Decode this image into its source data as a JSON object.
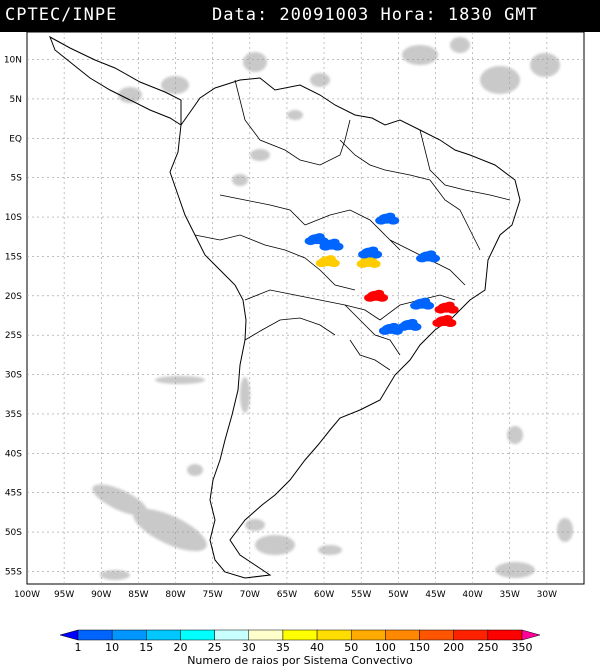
{
  "header": {
    "source": "CPTEC/INPE",
    "datetime": "Data: 20091003 Hora: 1830 GMT"
  },
  "map": {
    "lat_labels": [
      "10N",
      "5N",
      "EQ",
      "5S",
      "10S",
      "15S",
      "20S",
      "25S",
      "30S",
      "35S",
      "40S",
      "45S",
      "50S",
      "55S"
    ],
    "lon_labels": [
      "100W",
      "95W",
      "90W",
      "85W",
      "80W",
      "75W",
      "70W",
      "65W",
      "60W",
      "55W",
      "50W",
      "45W",
      "40W",
      "35W",
      "30W"
    ]
  },
  "colorbar": {
    "labels": [
      "1",
      "10",
      "15",
      "20",
      "25",
      "30",
      "35",
      "40",
      "50",
      "100",
      "150",
      "200",
      "250",
      "350"
    ],
    "colors": [
      "#0000ff",
      "#0064ff",
      "#0096ff",
      "#00c8ff",
      "#00ffff",
      "#c8ffff",
      "#ffffcc",
      "#ffff00",
      "#ffdd00",
      "#ffaa00",
      "#ff8800",
      "#ff5500",
      "#ff2200",
      "#ff0000",
      "#ff0099"
    ],
    "caption": "Numero de raios por Sistema Convectivo"
  },
  "lightning_clusters": [
    {
      "lon": -51.5,
      "lat": -10.2,
      "color": "#0064ff"
    },
    {
      "lon": -61.0,
      "lat": -12.8,
      "color": "#0064ff"
    },
    {
      "lon": -59.0,
      "lat": -13.5,
      "color": "#0064ff"
    },
    {
      "lon": -59.5,
      "lat": -15.6,
      "color": "#ffcc00"
    },
    {
      "lon": -54.0,
      "lat": -15.7,
      "color": "#ffcc00"
    },
    {
      "lon": -53.8,
      "lat": -14.5,
      "color": "#0064ff"
    },
    {
      "lon": -53.0,
      "lat": -20.0,
      "color": "#ff0000"
    },
    {
      "lon": -46.0,
      "lat": -15.0,
      "color": "#0064ff"
    },
    {
      "lon": -43.5,
      "lat": -21.5,
      "color": "#ff0000"
    },
    {
      "lon": -43.8,
      "lat": -23.2,
      "color": "#ff0000"
    },
    {
      "lon": -51.0,
      "lat": -24.2,
      "color": "#0064ff"
    },
    {
      "lon": -48.5,
      "lat": -23.7,
      "color": "#0064ff"
    },
    {
      "lon": -46.8,
      "lat": -21.0,
      "color": "#0064ff"
    }
  ]
}
